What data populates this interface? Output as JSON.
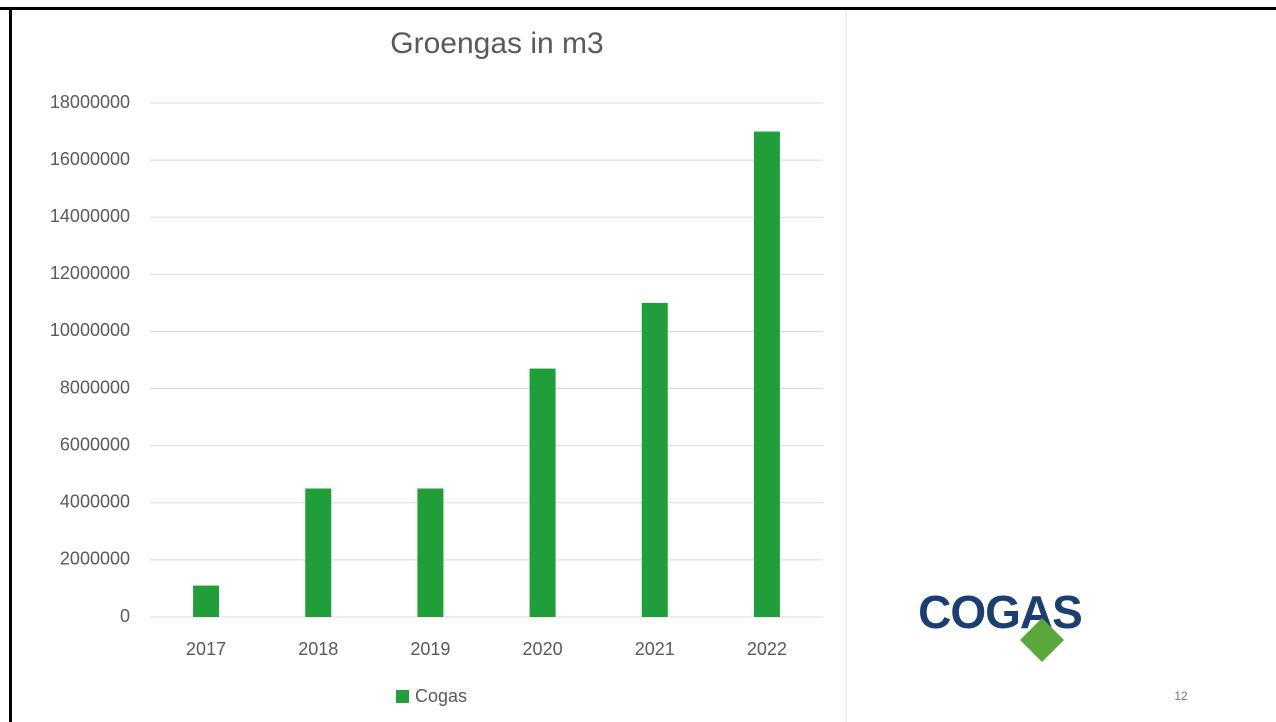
{
  "chart_data": {
    "type": "bar",
    "title": "Groengas in m3",
    "categories": [
      "2017",
      "2018",
      "2019",
      "2020",
      "2021",
      "2022"
    ],
    "series": [
      {
        "name": "Cogas",
        "color": "#1f9e3a",
        "values": [
          1100000,
          4500000,
          4500000,
          8700000,
          11000000,
          17000000
        ]
      }
    ],
    "ylim": [
      0,
      18000000
    ],
    "yticks": [
      0,
      2000000,
      4000000,
      6000000,
      8000000,
      10000000,
      12000000,
      14000000,
      16000000,
      18000000
    ],
    "grid": true,
    "legend": "bottom"
  },
  "logo": "COGAS",
  "page_number": "12"
}
